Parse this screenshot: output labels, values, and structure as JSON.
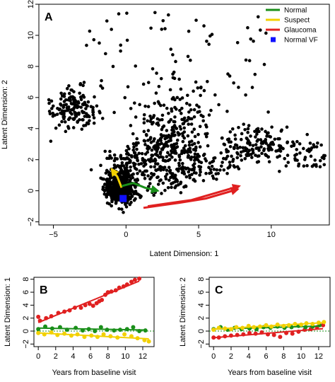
{
  "chart_data": [
    {
      "panel": "A",
      "type": "scatter",
      "xlabel": "Latent Dimension: 1",
      "ylabel": "Latent Dimension: 2",
      "xlim": [
        -6,
        14
      ],
      "ylim": [
        -2.2,
        12
      ],
      "x_ticks": [
        -5,
        0,
        5,
        10
      ],
      "y_ticks": [
        -2,
        0,
        2,
        4,
        6,
        8,
        10,
        12
      ],
      "legend_position": "top-right",
      "legend": [
        {
          "label": "Normal",
          "color": "#1a8f1a",
          "kind": "line"
        },
        {
          "label": "Suspect",
          "color": "#f2d000",
          "kind": "line"
        },
        {
          "label": "Glaucoma",
          "color": "#e02020",
          "kind": "line"
        },
        {
          "label": "Normal VF",
          "color": "#1010ff",
          "kind": "square"
        }
      ],
      "normal_vf_point": [
        -0.2,
        -0.5
      ],
      "trajectories": [
        {
          "group": "Glaucoma",
          "color": "#e02020",
          "path": [
            [
              1.2,
              -1.1
            ],
            [
              3.5,
              -0.8
            ],
            [
              5.5,
              -0.5
            ],
            [
              7.7,
              0.1
            ]
          ]
        },
        {
          "group": "Glaucoma",
          "color": "#e02020",
          "path": [
            [
              1.5,
              -1.0
            ],
            [
              4.5,
              -0.6
            ],
            [
              7.8,
              0.3
            ]
          ]
        },
        {
          "group": "Suspect",
          "color": "#f2d000",
          "path": [
            [
              -0.3,
              0.2
            ],
            [
              -0.6,
              0.9
            ],
            [
              -1.0,
              1.4
            ]
          ]
        },
        {
          "group": "Normal",
          "color": "#1a8f1a",
          "path": [
            [
              -0.3,
              0.3
            ],
            [
              0.5,
              0.5
            ],
            [
              1.3,
              0.2
            ],
            [
              2.2,
              0.0
            ]
          ]
        }
      ]
    },
    {
      "panel": "B",
      "type": "scatter",
      "xlabel": "Years from baseline visit",
      "ylabel": "Latent Dimension: 1",
      "xlim": [
        -0.5,
        13.3
      ],
      "ylim": [
        -2.4,
        8.3
      ],
      "x_ticks": [
        0,
        2,
        4,
        6,
        8,
        10,
        12
      ],
      "y_ticks": [
        -2,
        0,
        2,
        4,
        6,
        8
      ],
      "reference_line_y": 0,
      "series": [
        {
          "group": "Glaucoma",
          "color": "#e02020",
          "x": [
            0,
            0.2,
            0.9,
            1.5,
            2.3,
            3.0,
            3.6,
            4.2,
            4.9,
            5.4,
            5.9,
            6.3,
            6.7,
            7.0,
            7.3,
            7.7,
            8.0,
            8.4,
            8.9,
            9.3,
            9.8,
            10.2,
            10.7,
            11.1,
            11.6
          ],
          "y": [
            2.2,
            1.6,
            2.0,
            2.3,
            2.8,
            3.0,
            3.2,
            3.6,
            3.6,
            4.0,
            4.2,
            3.9,
            4.3,
            4.6,
            4.8,
            5.6,
            6.0,
            6.1,
            6.3,
            6.7,
            6.9,
            7.2,
            7.6,
            7.9,
            8.1
          ]
        },
        {
          "group": "Normal",
          "color": "#1a8f1a",
          "x": [
            0,
            0.8,
            1.6,
            2.5,
            3.3,
            4.3,
            5.1,
            5.8,
            6.5,
            7.2,
            7.9,
            8.7,
            9.4,
            10.2,
            10.9,
            11.6,
            12.3
          ],
          "y": [
            0.3,
            0.7,
            0.4,
            0.6,
            0.2,
            0.5,
            0.1,
            0.3,
            0.0,
            0.6,
            0.2,
            0.1,
            0.2,
            0.3,
            0.6,
            0.0,
            0.1
          ]
        },
        {
          "group": "Suspect",
          "color": "#f2d000",
          "x": [
            0,
            0.7,
            1.5,
            2.2,
            3.0,
            3.8,
            4.5,
            5.3,
            6.1,
            6.8,
            7.5,
            8.3,
            9.1,
            9.9,
            10.7,
            11.4,
            12.2,
            12.7
          ],
          "y": [
            -0.3,
            -0.5,
            -0.2,
            -0.6,
            -0.4,
            -0.7,
            -0.5,
            -0.9,
            -0.7,
            -0.9,
            -0.5,
            -0.8,
            -1.0,
            -0.5,
            -0.8,
            -1.1,
            -1.4,
            -1.6
          ]
        }
      ]
    },
    {
      "panel": "C",
      "type": "scatter",
      "xlabel": "Years from baseline visit",
      "ylabel": "Latent Dimension: 2",
      "xlim": [
        -0.5,
        13.3
      ],
      "ylim": [
        -2.4,
        8.3
      ],
      "x_ticks": [
        0,
        2,
        4,
        6,
        8,
        10,
        12
      ],
      "y_ticks": [
        -2,
        0,
        2,
        4,
        6,
        8
      ],
      "reference_line_y": 0,
      "series": [
        {
          "group": "Glaucoma",
          "color": "#e02020",
          "x": [
            0,
            0.6,
            1.3,
            2.0,
            2.7,
            3.4,
            4.1,
            4.8,
            5.5,
            6.2,
            6.9,
            7.6,
            8.3,
            9.0,
            9.7,
            10.4,
            11.1,
            11.8,
            12.5
          ],
          "y": [
            -1.0,
            -1.0,
            -0.8,
            -0.7,
            -0.6,
            -0.5,
            -0.3,
            -0.4,
            -0.2,
            -0.5,
            -0.6,
            -0.9,
            -0.3,
            -0.4,
            -0.1,
            0.2,
            0.3,
            0.6,
            0.9
          ]
        },
        {
          "group": "Normal",
          "color": "#1a8f1a",
          "x": [
            0,
            0.8,
            1.6,
            2.4,
            3.2,
            4.1,
            4.9,
            5.7,
            6.5,
            7.3,
            8.1,
            8.9,
            9.7,
            10.5,
            11.3,
            12.1
          ],
          "y": [
            0.3,
            0.6,
            0.2,
            0.5,
            0.3,
            0.4,
            0.3,
            0.6,
            0.5,
            0.7,
            0.5,
            0.6,
            0.8,
            0.6,
            0.7,
            0.9
          ]
        },
        {
          "group": "Suspect",
          "color": "#f2d000",
          "x": [
            0,
            0.6,
            1.3,
            2.0,
            2.6,
            3.3,
            4.0,
            4.6,
            5.3,
            6.0,
            6.6,
            7.3,
            8.0,
            8.6,
            9.3,
            10.0,
            10.6,
            11.3,
            12.0,
            12.6
          ],
          "y": [
            0.2,
            0.5,
            0.4,
            0.3,
            0.6,
            0.5,
            0.8,
            0.6,
            0.7,
            0.9,
            0.7,
            1.0,
            0.8,
            0.9,
            1.1,
            1.0,
            1.2,
            1.1,
            1.3,
            1.4
          ]
        }
      ]
    }
  ]
}
